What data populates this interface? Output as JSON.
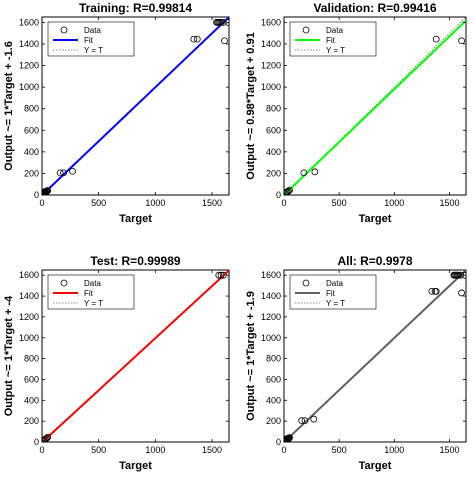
{
  "chart_data": [
    {
      "type": "scatter",
      "title": "Training: R=0.99814",
      "xlabel": "Target",
      "ylabel": "Output ~= 1*Target + -1.6",
      "xlim": [
        0,
        1650
      ],
      "ylim": [
        0,
        1650
      ],
      "xticks": [
        "0",
        "500",
        "1000",
        "1500"
      ],
      "yticks": [
        "0",
        "200",
        "400",
        "600",
        "800",
        "1000",
        "1200",
        "1400",
        "1600"
      ],
      "fit": {
        "slope": 1,
        "intercept": -1.6,
        "color": "#0000ff"
      },
      "series": [
        {
          "name": "Data",
          "points": [
            [
              5,
              5
            ],
            [
              10,
              12
            ],
            [
              15,
              8
            ],
            [
              20,
              18
            ],
            [
              25,
              25
            ],
            [
              30,
              20
            ],
            [
              35,
              30
            ],
            [
              40,
              38
            ],
            [
              45,
              35
            ],
            [
              50,
              42
            ],
            [
              20,
              30
            ],
            [
              30,
              14
            ],
            [
              160,
              205
            ],
            [
              190,
              205
            ],
            [
              270,
              220
            ],
            [
              1340,
              1445
            ],
            [
              1370,
              1445
            ],
            [
              1540,
              1600
            ],
            [
              1550,
              1600
            ],
            [
              1560,
              1600
            ],
            [
              1570,
              1600
            ],
            [
              1580,
              1600
            ],
            [
              1600,
              1600
            ],
            [
              1610,
              1430
            ],
            [
              1640,
              1600
            ]
          ]
        },
        {
          "name": "Fit"
        },
        {
          "name": "Y = T"
        }
      ],
      "grid": false,
      "legend": "top-left"
    },
    {
      "type": "scatter",
      "title": "Validation: R=0.99416",
      "xlabel": "Target",
      "ylabel": "Output ~= 0.98*Target + 0.91",
      "xlim": [
        0,
        1650
      ],
      "ylim": [
        0,
        1650
      ],
      "xticks": [
        "0",
        "500",
        "1000",
        "1500"
      ],
      "yticks": [
        "0",
        "200",
        "400",
        "600",
        "800",
        "1000",
        "1200",
        "1400",
        "1600"
      ],
      "fit": {
        "slope": 0.98,
        "intercept": 0.91,
        "color": "#00ff00"
      },
      "series": [
        {
          "name": "Data",
          "points": [
            [
              10,
              15
            ],
            [
              20,
              25
            ],
            [
              30,
              30
            ],
            [
              40,
              35
            ],
            [
              50,
              45
            ],
            [
              180,
              205
            ],
            [
              280,
              215
            ],
            [
              1380,
              1445
            ],
            [
              1610,
              1430
            ]
          ]
        },
        {
          "name": "Fit"
        },
        {
          "name": "Y = T"
        }
      ],
      "grid": false,
      "legend": "top-left"
    },
    {
      "type": "scatter",
      "title": "Test: R=0.99989",
      "xlabel": "Target",
      "ylabel": "Output ~= 1*Target + -4",
      "xlim": [
        0,
        1650
      ],
      "ylim": [
        0,
        1650
      ],
      "xticks": [
        "0",
        "500",
        "1000",
        "1500"
      ],
      "yticks": [
        "0",
        "200",
        "400",
        "600",
        "800",
        "1000",
        "1200",
        "1400",
        "1600"
      ],
      "fit": {
        "slope": 1,
        "intercept": -4,
        "color": "#ff0000"
      },
      "series": [
        {
          "name": "Data",
          "points": [
            [
              10,
              12
            ],
            [
              20,
              18
            ],
            [
              30,
              28
            ],
            [
              40,
              35
            ],
            [
              50,
              45
            ],
            [
              1560,
              1600
            ],
            [
              1580,
              1600
            ],
            [
              1600,
              1600
            ]
          ]
        },
        {
          "name": "Fit"
        },
        {
          "name": "Y = T"
        }
      ],
      "grid": false,
      "legend": "top-left"
    },
    {
      "type": "scatter",
      "title": "All: R=0.9978",
      "xlabel": "Target",
      "ylabel": "Output ~= 1*Target + -1.9",
      "xlim": [
        0,
        1650
      ],
      "ylim": [
        0,
        1650
      ],
      "xticks": [
        "0",
        "500",
        "1000",
        "1500"
      ],
      "yticks": [
        "0",
        "200",
        "400",
        "600",
        "800",
        "1000",
        "1200",
        "1400",
        "1600"
      ],
      "fit": {
        "slope": 1,
        "intercept": -1.9,
        "color": "#606060"
      },
      "series": [
        {
          "name": "Data",
          "points": [
            [
              5,
              5
            ],
            [
              10,
              12
            ],
            [
              15,
              8
            ],
            [
              20,
              18
            ],
            [
              25,
              25
            ],
            [
              30,
              20
            ],
            [
              35,
              30
            ],
            [
              40,
              38
            ],
            [
              45,
              35
            ],
            [
              50,
              42
            ],
            [
              20,
              30
            ],
            [
              30,
              14
            ],
            [
              160,
              205
            ],
            [
              190,
              205
            ],
            [
              270,
              220
            ],
            [
              1340,
              1445
            ],
            [
              1370,
              1445
            ],
            [
              1380,
              1445
            ],
            [
              1540,
              1600
            ],
            [
              1550,
              1600
            ],
            [
              1560,
              1600
            ],
            [
              1570,
              1600
            ],
            [
              1580,
              1600
            ],
            [
              1600,
              1600
            ],
            [
              1610,
              1430
            ],
            [
              1640,
              1600
            ]
          ]
        },
        {
          "name": "Fit"
        },
        {
          "name": "Y = T"
        }
      ],
      "grid": false,
      "legend": "top-left"
    }
  ]
}
